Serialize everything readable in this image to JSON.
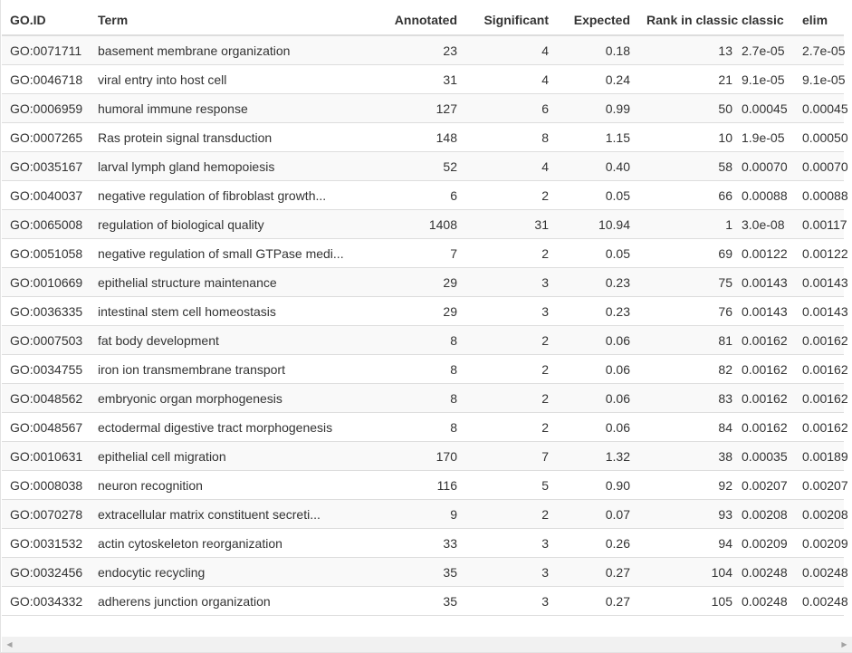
{
  "table": {
    "columns": {
      "go_id": "GO.ID",
      "term": "Term",
      "annotated": "Annotated",
      "significant": "Significant",
      "expected": "Expected",
      "rank": "Rank in classic",
      "classic": "classic",
      "elim": "elim"
    },
    "rows": [
      {
        "go_id": "GO:0071711",
        "term": "basement membrane organization",
        "annotated": "23",
        "significant": "4",
        "expected": "0.18",
        "rank": "13",
        "classic": "2.7e-05",
        "elim": "2.7e-05"
      },
      {
        "go_id": "GO:0046718",
        "term": "viral entry into host cell",
        "annotated": "31",
        "significant": "4",
        "expected": "0.24",
        "rank": "21",
        "classic": "9.1e-05",
        "elim": "9.1e-05"
      },
      {
        "go_id": "GO:0006959",
        "term": "humoral immune response",
        "annotated": "127",
        "significant": "6",
        "expected": "0.99",
        "rank": "50",
        "classic": "0.00045",
        "elim": "0.00045"
      },
      {
        "go_id": "GO:0007265",
        "term": "Ras protein signal transduction",
        "annotated": "148",
        "significant": "8",
        "expected": "1.15",
        "rank": "10",
        "classic": "1.9e-05",
        "elim": "0.00050"
      },
      {
        "go_id": "GO:0035167",
        "term": "larval lymph gland hemopoiesis",
        "annotated": "52",
        "significant": "4",
        "expected": "0.40",
        "rank": "58",
        "classic": "0.00070",
        "elim": "0.00070"
      },
      {
        "go_id": "GO:0040037",
        "term": "negative regulation of fibroblast growth...",
        "annotated": "6",
        "significant": "2",
        "expected": "0.05",
        "rank": "66",
        "classic": "0.00088",
        "elim": "0.00088"
      },
      {
        "go_id": "GO:0065008",
        "term": "regulation of biological quality",
        "annotated": "1408",
        "significant": "31",
        "expected": "10.94",
        "rank": "1",
        "classic": "3.0e-08",
        "elim": "0.00117"
      },
      {
        "go_id": "GO:0051058",
        "term": "negative regulation of small GTPase medi...",
        "annotated": "7",
        "significant": "2",
        "expected": "0.05",
        "rank": "69",
        "classic": "0.00122",
        "elim": "0.00122"
      },
      {
        "go_id": "GO:0010669",
        "term": "epithelial structure maintenance",
        "annotated": "29",
        "significant": "3",
        "expected": "0.23",
        "rank": "75",
        "classic": "0.00143",
        "elim": "0.00143"
      },
      {
        "go_id": "GO:0036335",
        "term": "intestinal stem cell homeostasis",
        "annotated": "29",
        "significant": "3",
        "expected": "0.23",
        "rank": "76",
        "classic": "0.00143",
        "elim": "0.00143"
      },
      {
        "go_id": "GO:0007503",
        "term": "fat body development",
        "annotated": "8",
        "significant": "2",
        "expected": "0.06",
        "rank": "81",
        "classic": "0.00162",
        "elim": "0.00162"
      },
      {
        "go_id": "GO:0034755",
        "term": "iron ion transmembrane transport",
        "annotated": "8",
        "significant": "2",
        "expected": "0.06",
        "rank": "82",
        "classic": "0.00162",
        "elim": "0.00162"
      },
      {
        "go_id": "GO:0048562",
        "term": "embryonic organ morphogenesis",
        "annotated": "8",
        "significant": "2",
        "expected": "0.06",
        "rank": "83",
        "classic": "0.00162",
        "elim": "0.00162"
      },
      {
        "go_id": "GO:0048567",
        "term": "ectodermal digestive tract morphogenesis",
        "annotated": "8",
        "significant": "2",
        "expected": "0.06",
        "rank": "84",
        "classic": "0.00162",
        "elim": "0.00162"
      },
      {
        "go_id": "GO:0010631",
        "term": "epithelial cell migration",
        "annotated": "170",
        "significant": "7",
        "expected": "1.32",
        "rank": "38",
        "classic": "0.00035",
        "elim": "0.00189"
      },
      {
        "go_id": "GO:0008038",
        "term": "neuron recognition",
        "annotated": "116",
        "significant": "5",
        "expected": "0.90",
        "rank": "92",
        "classic": "0.00207",
        "elim": "0.00207"
      },
      {
        "go_id": "GO:0070278",
        "term": "extracellular matrix constituent secreti...",
        "annotated": "9",
        "significant": "2",
        "expected": "0.07",
        "rank": "93",
        "classic": "0.00208",
        "elim": "0.00208"
      },
      {
        "go_id": "GO:0031532",
        "term": "actin cytoskeleton reorganization",
        "annotated": "33",
        "significant": "3",
        "expected": "0.26",
        "rank": "94",
        "classic": "0.00209",
        "elim": "0.00209"
      },
      {
        "go_id": "GO:0032456",
        "term": "endocytic recycling",
        "annotated": "35",
        "significant": "3",
        "expected": "0.27",
        "rank": "104",
        "classic": "0.00248",
        "elim": "0.00248"
      },
      {
        "go_id": "GO:0034332",
        "term": "adherens junction organization",
        "annotated": "35",
        "significant": "3",
        "expected": "0.27",
        "rank": "105",
        "classic": "0.00248",
        "elim": "0.00248"
      }
    ]
  },
  "scrollbar": {
    "left_icon": "triangle-left-icon",
    "right_icon": "triangle-right-icon"
  }
}
